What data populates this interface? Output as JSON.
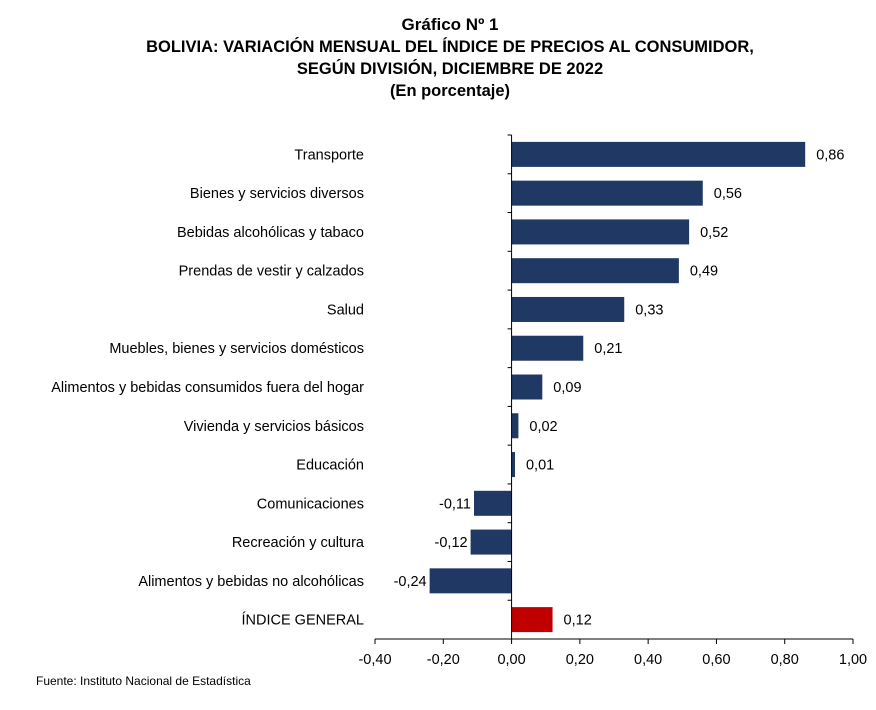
{
  "header": {
    "title": "Gráfico Nº 1",
    "subtitle_line1": "BOLIVIA: VARIACIÓN MENSUAL DEL ÍNDICE DE PRECIOS AL CONSUMIDOR,",
    "subtitle_line2": "SEGÚN DIVISIÓN, DICIEMBRE DE 2022",
    "unit": "(En porcentaje)"
  },
  "source": "Fuente: Instituto Nacional de Estadística",
  "colors": {
    "bar": "#1f3864",
    "highlight": "#c00000",
    "axis": "#000000"
  },
  "chart_data": {
    "type": "bar",
    "orientation": "horizontal",
    "categories": [
      "Transporte",
      "Bienes y servicios diversos",
      "Bebidas alcohólicas y tabaco",
      "Prendas de vestir y calzados",
      "Salud",
      "Muebles, bienes y servicios domésticos",
      "Alimentos y bebidas consumidos fuera del hogar",
      "Vivienda y servicios básicos",
      "Educación",
      "Comunicaciones",
      "Recreación y cultura",
      "Alimentos y bebidas no alcohólicas",
      "ÍNDICE GENERAL"
    ],
    "values": [
      0.86,
      0.56,
      0.52,
      0.49,
      0.33,
      0.21,
      0.09,
      0.02,
      0.01,
      -0.11,
      -0.12,
      -0.24,
      0.12
    ],
    "value_labels": [
      "0,86",
      "0,56",
      "0,52",
      "0,49",
      "0,33",
      "0,21",
      "0,09",
      "0,02",
      "0,01",
      "-0,11",
      "-0,12",
      "-0,24",
      "0,12"
    ],
    "highlight_category": "ÍNDICE GENERAL",
    "xlim": [
      -0.4,
      1.0
    ],
    "x_ticks": [
      -0.4,
      -0.2,
      0.0,
      0.2,
      0.4,
      0.6,
      0.8,
      1.0
    ],
    "x_tick_labels": [
      "-0,40",
      "-0,20",
      "0,00",
      "0,20",
      "0,40",
      "0,60",
      "0,80",
      "1,00"
    ],
    "grid": false,
    "legend": "none"
  }
}
